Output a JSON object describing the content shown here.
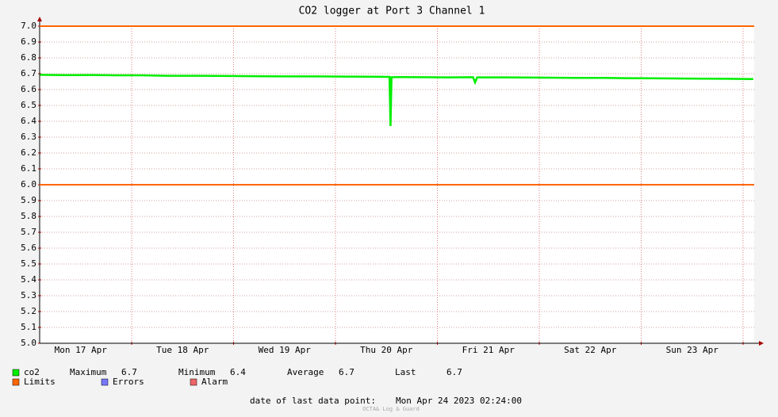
{
  "chart_data": {
    "type": "line",
    "title": "CO2 logger at Port 3 Channel 1",
    "x": [
      17.1,
      17.35,
      17.6,
      17.85,
      18.1,
      18.35,
      18.6,
      18.85,
      19.1,
      19.35,
      19.6,
      19.85,
      20.1,
      20.35,
      20.53,
      20.54,
      20.55,
      20.6,
      20.85,
      21.1,
      21.35,
      21.37,
      21.39,
      21.6,
      21.85,
      22.1,
      22.35,
      22.6,
      22.85,
      23.1,
      23.35,
      23.6,
      23.85,
      24.1
    ],
    "series": [
      {
        "name": "co2",
        "color": "#00ee00",
        "values": [
          6.693,
          6.691,
          6.692,
          6.69,
          6.69,
          6.687,
          6.687,
          6.686,
          6.685,
          6.684,
          6.683,
          6.683,
          6.682,
          6.681,
          6.68,
          6.37,
          6.678,
          6.679,
          6.678,
          6.677,
          6.678,
          6.645,
          6.677,
          6.677,
          6.676,
          6.675,
          6.674,
          6.674,
          6.672,
          6.671,
          6.67,
          6.669,
          6.668,
          6.666
        ]
      }
    ],
    "limits": {
      "name": "Limits",
      "color": "#ff6600",
      "values": [
        6.0,
        7.0
      ]
    },
    "other_legend": [
      {
        "name": "Errors",
        "color": "#7777ff"
      },
      {
        "name": "Alarm",
        "color": "#ee6666"
      }
    ],
    "stats": [
      {
        "label": "Maximum",
        "value": 6.7
      },
      {
        "label": "Minimum",
        "value": 6.4
      },
      {
        "label": "Average",
        "value": 6.7
      },
      {
        "label": "Last",
        "value": 6.7
      }
    ],
    "xlim": [
      17.097,
      24.109
    ],
    "xticks": [
      {
        "value": 17.5,
        "label": "Mon 17 Apr"
      },
      {
        "value": 18.5,
        "label": "Tue 18 Apr"
      },
      {
        "value": 19.5,
        "label": "Wed 19 Apr"
      },
      {
        "value": 20.5,
        "label": "Thu 20 Apr"
      },
      {
        "value": 21.5,
        "label": "Fri 21 Apr"
      },
      {
        "value": 22.5,
        "label": "Sat 22 Apr"
      },
      {
        "value": 23.5,
        "label": "Sun 23 Apr"
      }
    ],
    "xgrid": [
      18,
      19,
      20,
      21,
      22,
      23,
      24
    ],
    "ylim": [
      5.0,
      7.0
    ],
    "yticks": [
      {
        "value": 5.0,
        "label": "5.0"
      },
      {
        "value": 5.1,
        "label": "5.1"
      },
      {
        "value": 5.2,
        "label": "5.2"
      },
      {
        "value": 5.3,
        "label": "5.3"
      },
      {
        "value": 5.4,
        "label": "5.4"
      },
      {
        "value": 5.5,
        "label": "5.5"
      },
      {
        "value": 5.6,
        "label": "5.6"
      },
      {
        "value": 5.7,
        "label": "5.7"
      },
      {
        "value": 5.8,
        "label": "5.8"
      },
      {
        "value": 5.9,
        "label": "5.9"
      },
      {
        "value": 6.0,
        "label": "6.0"
      },
      {
        "value": 6.1,
        "label": "6.1"
      },
      {
        "value": 6.2,
        "label": "6.2"
      },
      {
        "value": 6.3,
        "label": "6.3"
      },
      {
        "value": 6.4,
        "label": "6.4"
      },
      {
        "value": 6.5,
        "label": "6.5"
      },
      {
        "value": 6.6,
        "label": "6.6"
      },
      {
        "value": 6.7,
        "label": "6.7"
      },
      {
        "value": 6.8,
        "label": "6.8"
      },
      {
        "value": 6.9,
        "label": "6.9"
      },
      {
        "value": 7.0,
        "label": "7.0"
      }
    ],
    "grid": true,
    "footer_label": "date of last data point:",
    "footer_value": "Mon Apr 24 2023 02:24:00",
    "watermark": "OCTA& Log & Guard"
  }
}
